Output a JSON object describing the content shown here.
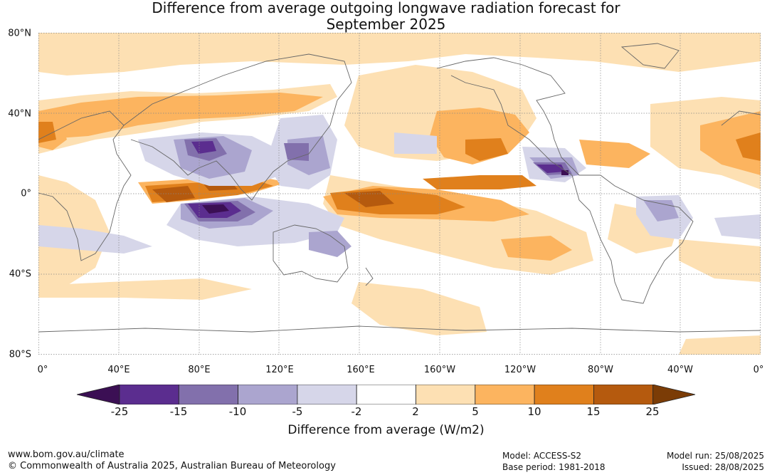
{
  "title": {
    "line1": "Difference from average outgoing longwave radiation forecast for",
    "line2": "September 2025"
  },
  "map": {
    "lat_labels": [
      "80°N",
      "40°N",
      "0°",
      "40°S",
      "80°S"
    ],
    "lon_labels": [
      "0°",
      "40°E",
      "80°E",
      "120°E",
      "160°E",
      "160°W",
      "120°W",
      "80°W",
      "40°W",
      "0°"
    ]
  },
  "colorbar": {
    "ticks": [
      "-25",
      "-15",
      "-10",
      "-5",
      "-2",
      "2",
      "5",
      "10",
      "15",
      "25"
    ],
    "colors": [
      "#3b0f54",
      "#5b2d8f",
      "#8270ac",
      "#aba5cf",
      "#d6d6e9",
      "#ffffff",
      "#fde0b3",
      "#fcb45f",
      "#e0801c",
      "#b55a0e",
      "#7b3c06"
    ],
    "label": "Difference from average (W/m2)"
  },
  "footer": {
    "website": "www.bom.gov.au/climate",
    "copyright": "© Commonwealth of Australia 2025, Australian Bureau of Meteorology",
    "model": "Model: ACCESS-S2",
    "base_period": "Base period: 1981-2018",
    "model_run": "Model run: 25/08/2025",
    "issued": "Issued: 28/08/2025"
  }
}
